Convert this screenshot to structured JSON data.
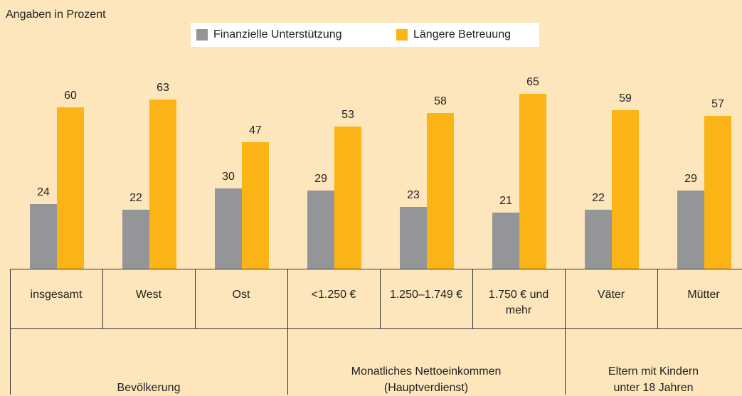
{
  "chart_data": {
    "type": "bar",
    "title": "Angaben in Prozent",
    "categories": [
      "insgesamt",
      "West",
      "Ost",
      "<1.250 €",
      "1.250–1.749 €",
      "1.750 € und\nmehr",
      "Väter",
      "Mütter"
    ],
    "groups": [
      "Bevölkerung",
      "Monatliches Nettoeinkommen\n(Hauptverdienst)",
      "Eltern mit Kindern\nunter 18 Jahren"
    ],
    "series": [
      {
        "name": "Finanzielle Unterstützung",
        "color": "#939598",
        "values": [
          24,
          22,
          30,
          29,
          23,
          21,
          22,
          29
        ]
      },
      {
        "name": "Längere Betreuung",
        "color": "#fbb415",
        "values": [
          60,
          63,
          47,
          53,
          58,
          65,
          59,
          57
        ]
      }
    ]
  }
}
